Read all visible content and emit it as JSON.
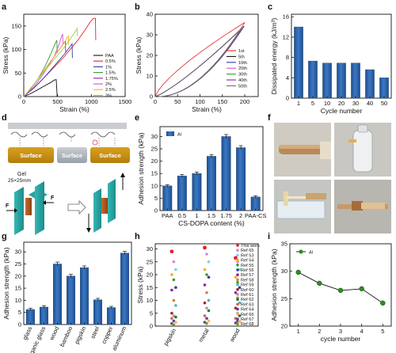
{
  "panel_letters": [
    "a",
    "b",
    "c",
    "d",
    "e",
    "f",
    "g",
    "h",
    "i"
  ],
  "colors": {
    "bar": "#2e63a7",
    "bar_dark": "#1f4f8e",
    "line_point": "#2e8b22"
  },
  "chart_data": [
    {
      "id": "a",
      "type": "line",
      "xlabel": "Strain (%)",
      "ylabel": "Stress (kPa)",
      "xlim": [
        0,
        1500
      ],
      "ylim": [
        0,
        175
      ],
      "xticks": [
        0,
        500,
        1000,
        1500
      ],
      "yticks": [
        0,
        50,
        100,
        150
      ],
      "legend": "right",
      "series": [
        {
          "name": "PAA",
          "color": "#111111",
          "points": [
            [
              0,
              0
            ],
            [
              100,
              6
            ],
            [
              200,
              14
            ],
            [
              300,
              22
            ],
            [
              400,
              30
            ],
            [
              450,
              35
            ],
            [
              480,
              36
            ],
            [
              495,
              0
            ]
          ]
        },
        {
          "name": "0.5%",
          "color": "#e8202a",
          "points": [
            [
              0,
              0
            ],
            [
              200,
              25
            ],
            [
              400,
              55
            ],
            [
              600,
              85
            ],
            [
              800,
              120
            ],
            [
              900,
              140
            ],
            [
              980,
              158
            ],
            [
              1030,
              166
            ],
            [
              1060,
              166
            ],
            [
              1065,
              120
            ]
          ]
        },
        {
          "name": "1%",
          "color": "#2b3ea8",
          "points": [
            [
              0,
              0
            ],
            [
              150,
              18
            ],
            [
              300,
              40
            ],
            [
              450,
              65
            ],
            [
              600,
              90
            ],
            [
              680,
              105
            ],
            [
              715,
              112
            ],
            [
              720,
              82
            ]
          ]
        },
        {
          "name": "1.5%",
          "color": "#33a02c",
          "points": [
            [
              0,
              0
            ],
            [
              100,
              15
            ],
            [
              200,
              35
            ],
            [
              300,
              60
            ],
            [
              400,
              90
            ],
            [
              450,
              108
            ],
            [
              490,
              120
            ],
            [
              495,
              92
            ]
          ]
        },
        {
          "name": "1.75%",
          "color": "#8e24aa",
          "points": [
            [
              0,
              0
            ],
            [
              150,
              25
            ],
            [
              300,
              55
            ],
            [
              450,
              85
            ],
            [
              550,
              105
            ],
            [
              600,
              115
            ],
            [
              615,
              118
            ],
            [
              620,
              95
            ]
          ]
        },
        {
          "name": "2%",
          "color": "#d14fd1",
          "points": [
            [
              0,
              0
            ],
            [
              150,
              20
            ],
            [
              300,
              50
            ],
            [
              450,
              85
            ],
            [
              520,
              110
            ],
            [
              560,
              128
            ],
            [
              575,
              133
            ],
            [
              580,
              110
            ]
          ]
        },
        {
          "name": "2.5%",
          "color": "#ffb020",
          "points": [
            [
              0,
              0
            ],
            [
              150,
              25
            ],
            [
              300,
              55
            ],
            [
              450,
              85
            ],
            [
              550,
              105
            ],
            [
              600,
              115
            ],
            [
              640,
              125
            ],
            [
              660,
              129
            ],
            [
              665,
              110
            ]
          ]
        },
        {
          "name": "3%",
          "color": "#9bd04a",
          "points": [
            [
              0,
              0
            ],
            [
              200,
              35
            ],
            [
              400,
              70
            ],
            [
              600,
              105
            ],
            [
              700,
              125
            ],
            [
              760,
              138
            ],
            [
              790,
              145
            ],
            [
              795,
              128
            ]
          ]
        }
      ]
    },
    {
      "id": "b",
      "type": "line",
      "xlabel": "Strain (%)",
      "ylabel": "Stress (kPa)",
      "xlim": [
        0,
        230
      ],
      "ylim": [
        0,
        40
      ],
      "xticks": [
        0,
        50,
        100,
        150,
        200
      ],
      "yticks": [
        0,
        10,
        20,
        30,
        40
      ],
      "legend": "right",
      "series": [
        {
          "name": "1st",
          "color": "#e8202a"
        },
        {
          "name": "5th",
          "color": "#111111"
        },
        {
          "name": "10th",
          "color": "#2b3ea8"
        },
        {
          "name": "20th",
          "color": "#d14fd1"
        },
        {
          "name": "30th",
          "color": "#33a02c"
        },
        {
          "name": "40th",
          "color": "#8e24aa"
        },
        {
          "name": "50th",
          "color": "#6c6c6c"
        }
      ]
    },
    {
      "id": "c",
      "type": "bar",
      "xlabel": "Cycle number",
      "ylabel": "Dissipated energy (kJ/m³)",
      "categories": [
        "1",
        "5",
        "10",
        "20",
        "30",
        "40",
        "50"
      ],
      "values": [
        14,
        7.3,
        6.9,
        6.9,
        6.9,
        5.6,
        4.0
      ],
      "ylim": [
        0,
        16.5
      ],
      "yticks": [
        0,
        4,
        8,
        12,
        16
      ]
    },
    {
      "id": "e",
      "type": "bar",
      "xlabel": "CS-DOPA content (%)",
      "ylabel": "Adhesion strength (kPa)",
      "legend_label": "Al",
      "categories": [
        "PAA",
        "0.5",
        "1",
        "1.5",
        "1.75",
        "2",
        "PAA-CS"
      ],
      "values": [
        10,
        14,
        15,
        22,
        30,
        25.5,
        5.5
      ],
      "errors": [
        0.5,
        0.6,
        0.6,
        0.7,
        0.8,
        0.8,
        0.5
      ],
      "ylim": [
        0,
        34
      ],
      "yticks": [
        0,
        5,
        10,
        15,
        20,
        25,
        30
      ]
    },
    {
      "id": "g",
      "type": "bar",
      "ylabel": "Adhesion strength (kPa)",
      "categories": [
        "glass",
        "organic glass",
        "wood",
        "bamboo",
        "pigskin",
        "steel",
        "copper",
        "aluminum"
      ],
      "values": [
        6.2,
        7.2,
        25,
        20,
        23.5,
        10.2,
        7.0,
        29.5
      ],
      "errors": [
        0.5,
        0.6,
        0.8,
        0.7,
        0.7,
        0.6,
        0.5,
        0.7
      ],
      "ylim": [
        0,
        34
      ],
      "yticks": [
        0,
        5,
        10,
        15,
        20,
        25,
        30
      ]
    },
    {
      "id": "h",
      "type": "scatter",
      "ylabel": "Stress (kPa)",
      "categories": [
        "pigskin",
        "metal",
        "wood"
      ],
      "ylim": [
        0,
        32
      ],
      "yticks": [
        0,
        5,
        10,
        15,
        20,
        25,
        30
      ],
      "legend": [
        "This work",
        "Ref 65",
        "Ref 53",
        "Ref 54",
        "Ref 55",
        "Ref 56",
        "Ref 57",
        "Ref 58",
        "Ref 59",
        "Ref 60",
        "Ref 61",
        "Ref 62",
        "Ref 63",
        "Ref 64",
        "Ref 66",
        "Ref 67",
        "Ref 68"
      ]
    },
    {
      "id": "i",
      "type": "line",
      "xlabel": "cycle number",
      "ylabel": "Adhesion strength (kPa)",
      "legend_label": "Al",
      "x": [
        1,
        2,
        3,
        4,
        5
      ],
      "y": [
        29.8,
        27.8,
        26.5,
        26.8,
        24.2
      ],
      "xlim": [
        0.6,
        5.4
      ],
      "ylim": [
        20,
        35
      ],
      "xticks": [
        1,
        2,
        3,
        4,
        5
      ],
      "yticks": [
        20,
        25,
        30,
        35
      ]
    }
  ],
  "diagram_d": {
    "surface_label": "Surface",
    "gel_label": "Gel",
    "gel_size": "25×25mm",
    "force_label": "F"
  }
}
